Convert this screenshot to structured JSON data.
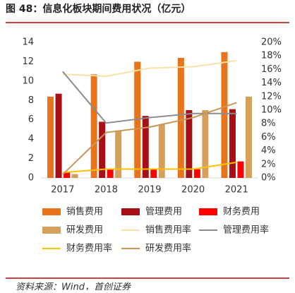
{
  "chart_data": {
    "type": "bar-line",
    "title": "图 48：信息化板块期间费用状况（亿元）",
    "source": "资料来源：Wind，首创证券",
    "categories": [
      "2017",
      "2018",
      "2019",
      "2020",
      "2021"
    ],
    "ylim": [
      0,
      14
    ],
    "yticks": [
      0,
      2,
      4,
      6,
      8,
      10,
      12,
      14
    ],
    "y2lim": [
      0,
      20
    ],
    "y2ticks": [
      {
        "value": 0,
        "label": "0%"
      },
      {
        "value": 2,
        "label": "2%"
      },
      {
        "value": 4,
        "label": "4%"
      },
      {
        "value": 6,
        "label": "6%"
      },
      {
        "value": 8,
        "label": "8%"
      },
      {
        "value": 10,
        "label": "10%"
      },
      {
        "value": 12,
        "label": "12%"
      },
      {
        "value": 14,
        "label": "14%"
      },
      {
        "value": 16,
        "label": "16%"
      },
      {
        "value": 18,
        "label": "18%"
      },
      {
        "value": 20,
        "label": "20%"
      }
    ],
    "series": [
      {
        "name": "销售费用",
        "kind": "bar",
        "color": "#e8731a",
        "values": [
          8.4,
          10.7,
          12.0,
          12.4,
          13.0
        ]
      },
      {
        "name": "管理费用",
        "kind": "bar",
        "color": "#a50f15",
        "values": [
          8.7,
          5.8,
          6.4,
          7.0,
          7.1
        ]
      },
      {
        "name": "财务费用",
        "kind": "bar",
        "color": "#ff0000",
        "values": [
          0.6,
          0.9,
          0.9,
          0.9,
          1.7
        ]
      },
      {
        "name": "研发费用",
        "kind": "bar",
        "color": "#d4a05a",
        "values": [
          0.4,
          4.9,
          5.5,
          7.0,
          8.4
        ]
      },
      {
        "name": "销售费用率",
        "kind": "line",
        "axis": "y2",
        "color": "#fbe0a8",
        "values": [
          15.3,
          15.0,
          16.2,
          16.4,
          17.3
        ]
      },
      {
        "name": "管理费用率",
        "kind": "line",
        "axis": "y2",
        "color": "#8c8c8c",
        "values": [
          15.7,
          8.1,
          8.9,
          9.5,
          9.5
        ]
      },
      {
        "name": "财务费用率",
        "kind": "line",
        "axis": "y2",
        "color": "#ffc000",
        "values": [
          0.8,
          1.3,
          1.3,
          1.3,
          2.3
        ]
      },
      {
        "name": "研发费用率",
        "kind": "line",
        "axis": "y2",
        "color": "#c8965a",
        "values": [
          0.5,
          6.7,
          7.5,
          8.9,
          11.1
        ]
      }
    ]
  }
}
